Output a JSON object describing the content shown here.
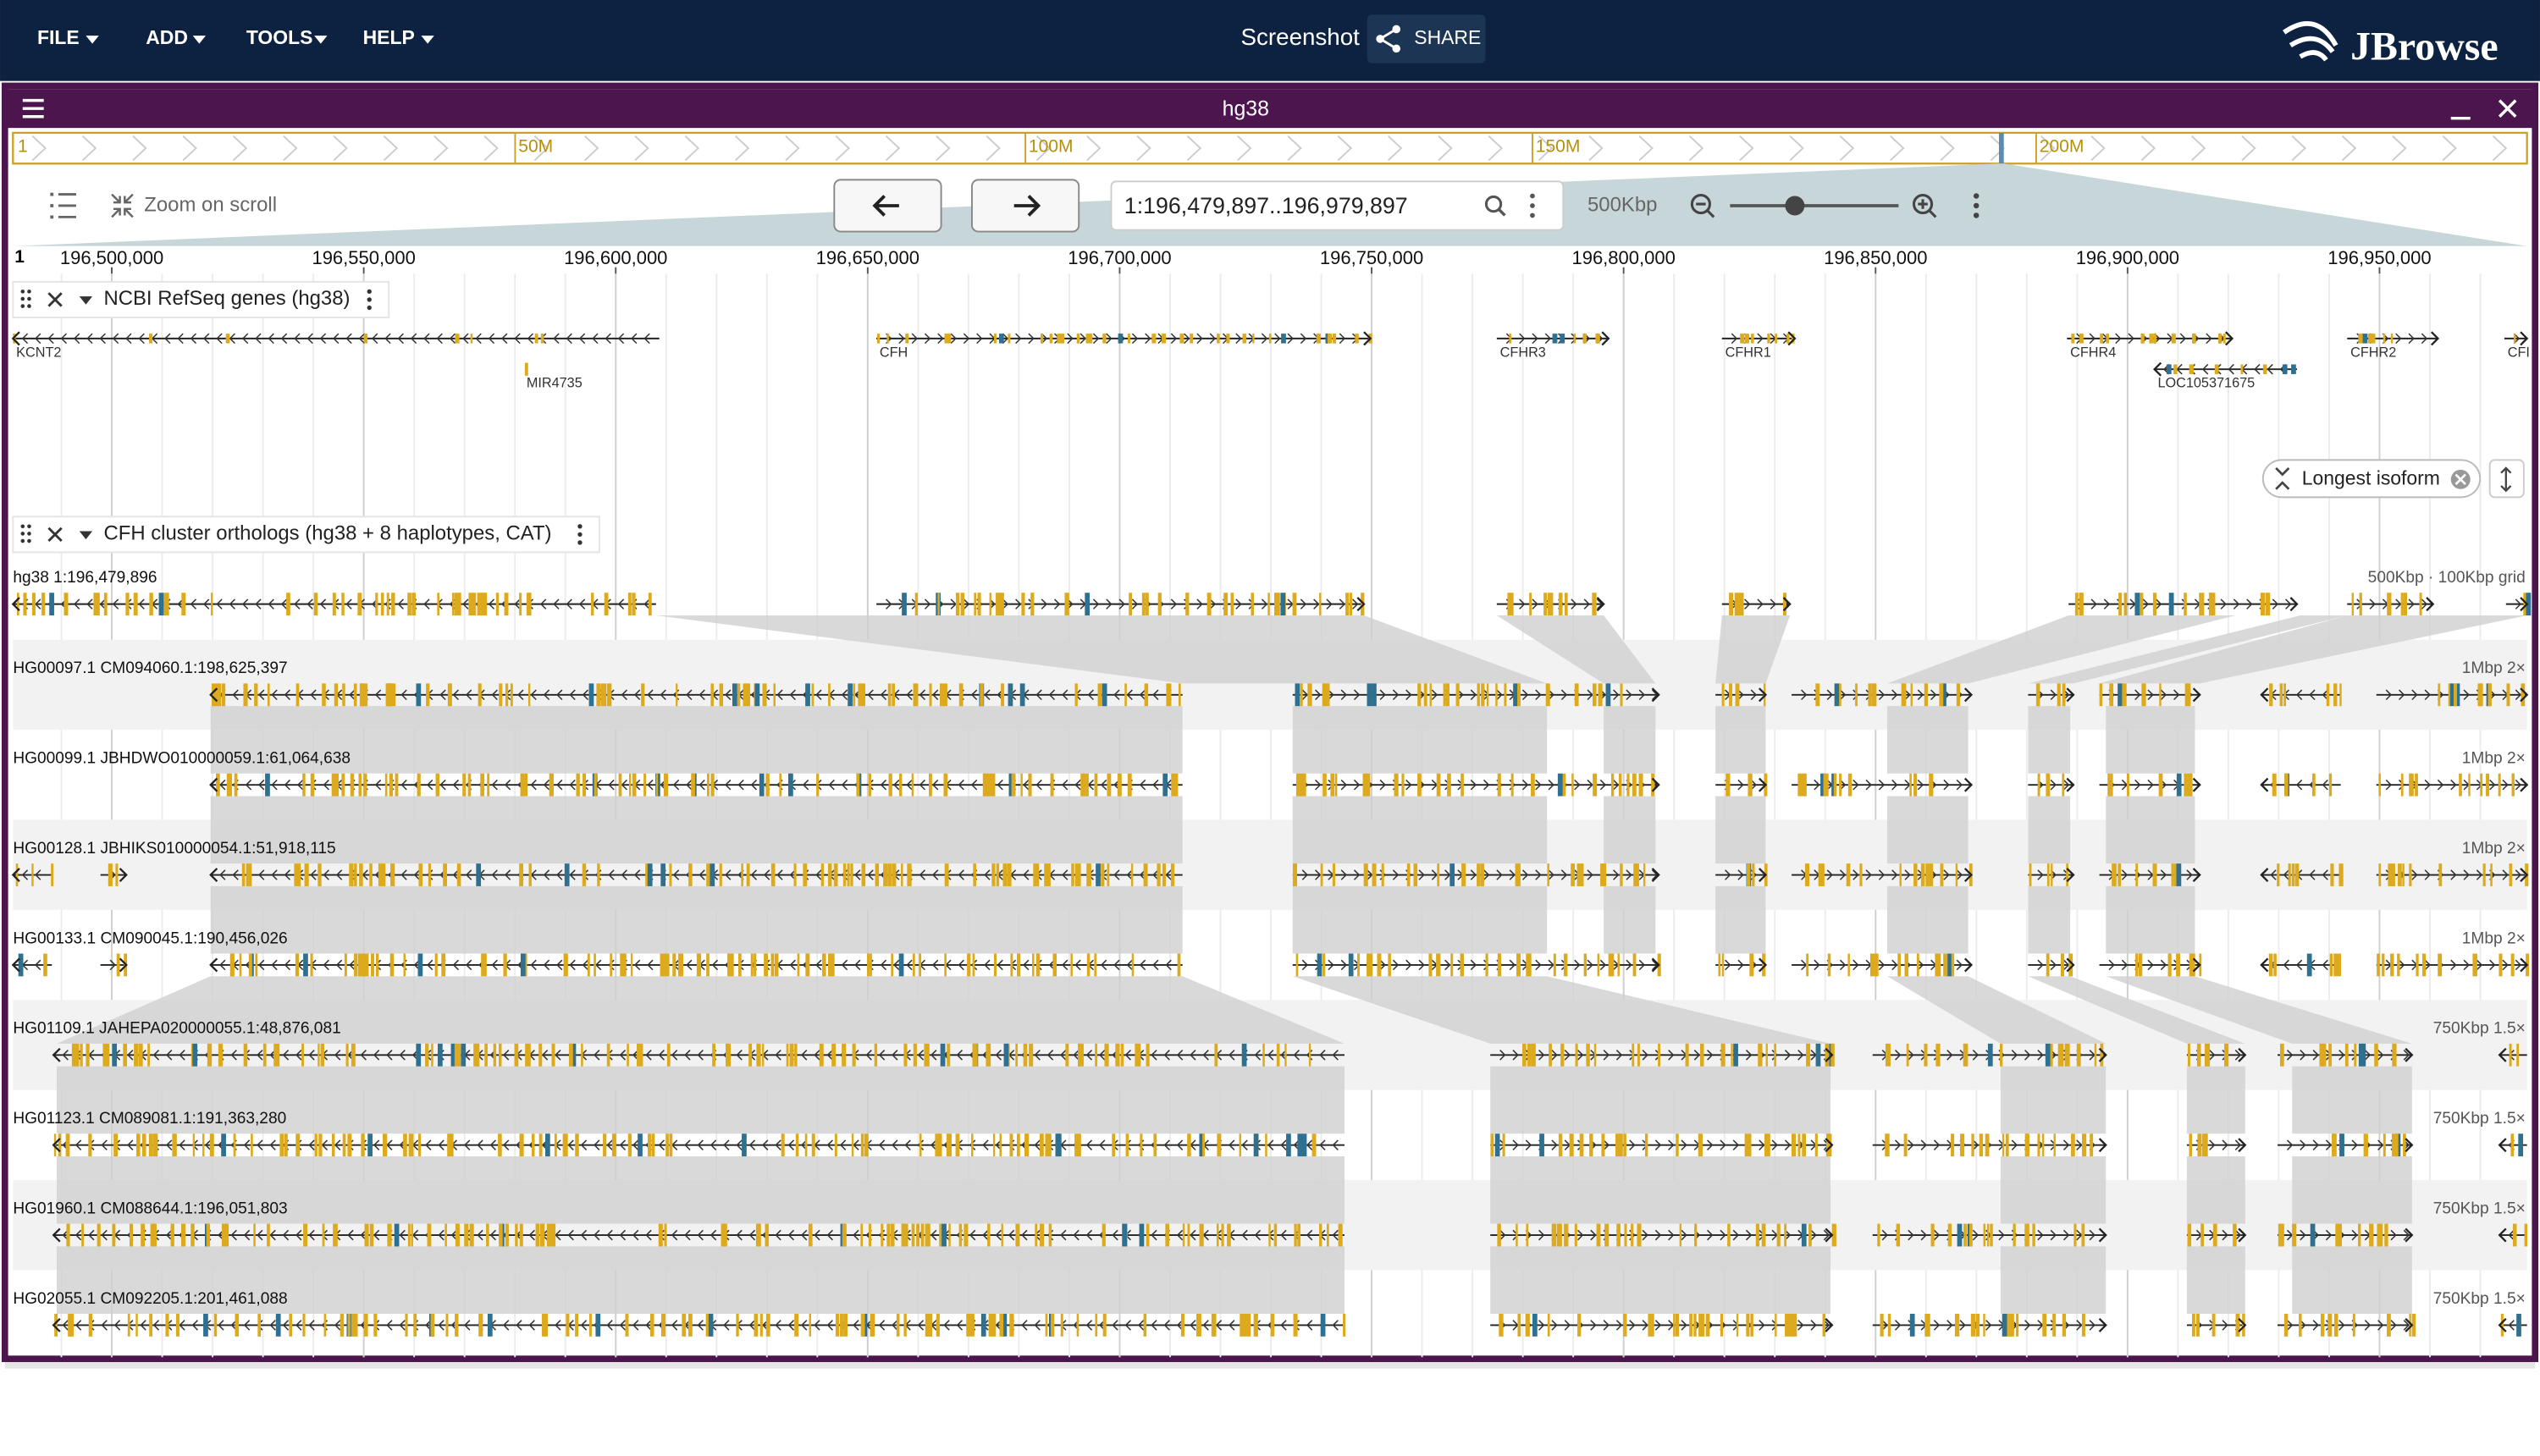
{
  "menu": [
    "FILE",
    "ADD",
    "TOOLS",
    "HELP"
  ],
  "session_name": "Screenshot",
  "share": "SHARE",
  "logo": "JBrowse",
  "view": {
    "title": "hg38",
    "overview_ticks": [
      "1",
      "50M",
      "100M",
      "150M",
      "200M"
    ],
    "zoom_on_scroll": "Zoom on scroll",
    "location": "1:196,479,897..196,979,897",
    "zoom_level": "500Kbp",
    "ruler_refname": "1",
    "ruler": [
      "196,500,000",
      "196,550,000",
      "196,600,000",
      "196,650,000",
      "196,700,000",
      "196,750,000",
      "196,800,000",
      "196,850,000",
      "196,900,000",
      "196,950,000"
    ]
  },
  "tracks": [
    {
      "name": "NCBI RefSeq genes (hg38)",
      "genes": [
        "KCNT2",
        "MIR4735",
        "CFH",
        "CFHR3",
        "CFHR1",
        "CFHR4",
        "LOC105371675",
        "CFHR2",
        "CFI"
      ],
      "button": "Longest isoform"
    },
    {
      "name": "CFH cluster orthologs (hg38 + 8 haplotypes, CAT)",
      "rows": [
        {
          "label": "hg38 1:196,479,896",
          "scale": "500Kbp · 100Kbp grid"
        },
        {
          "label": "HG00097.1 CM094060.1:198,625,397",
          "scale": "1Mbp 2×"
        },
        {
          "label": "HG00099.1 JBHDWO010000059.1:61,064,638",
          "scale": "1Mbp 2×"
        },
        {
          "label": "HG00128.1 JBHIKS010000054.1:51,918,115",
          "scale": "1Mbp 2×"
        },
        {
          "label": "HG00133.1 CM090045.1:190,456,026",
          "scale": "1Mbp 2×"
        },
        {
          "label": "HG01109.1 JAHEPA020000055.1:48,876,081",
          "scale": "750Kbp 1.5×"
        },
        {
          "label": "HG01123.1 CM089081.1:191,363,280",
          "scale": "750Kbp 1.5×"
        },
        {
          "label": "HG01960.1 CM088644.1:196,051,803",
          "scale": "750Kbp 1.5×"
        },
        {
          "label": "HG02055.1 CM092205.1:201,461,088",
          "scale": "750Kbp 1.5×"
        }
      ]
    }
  ]
}
